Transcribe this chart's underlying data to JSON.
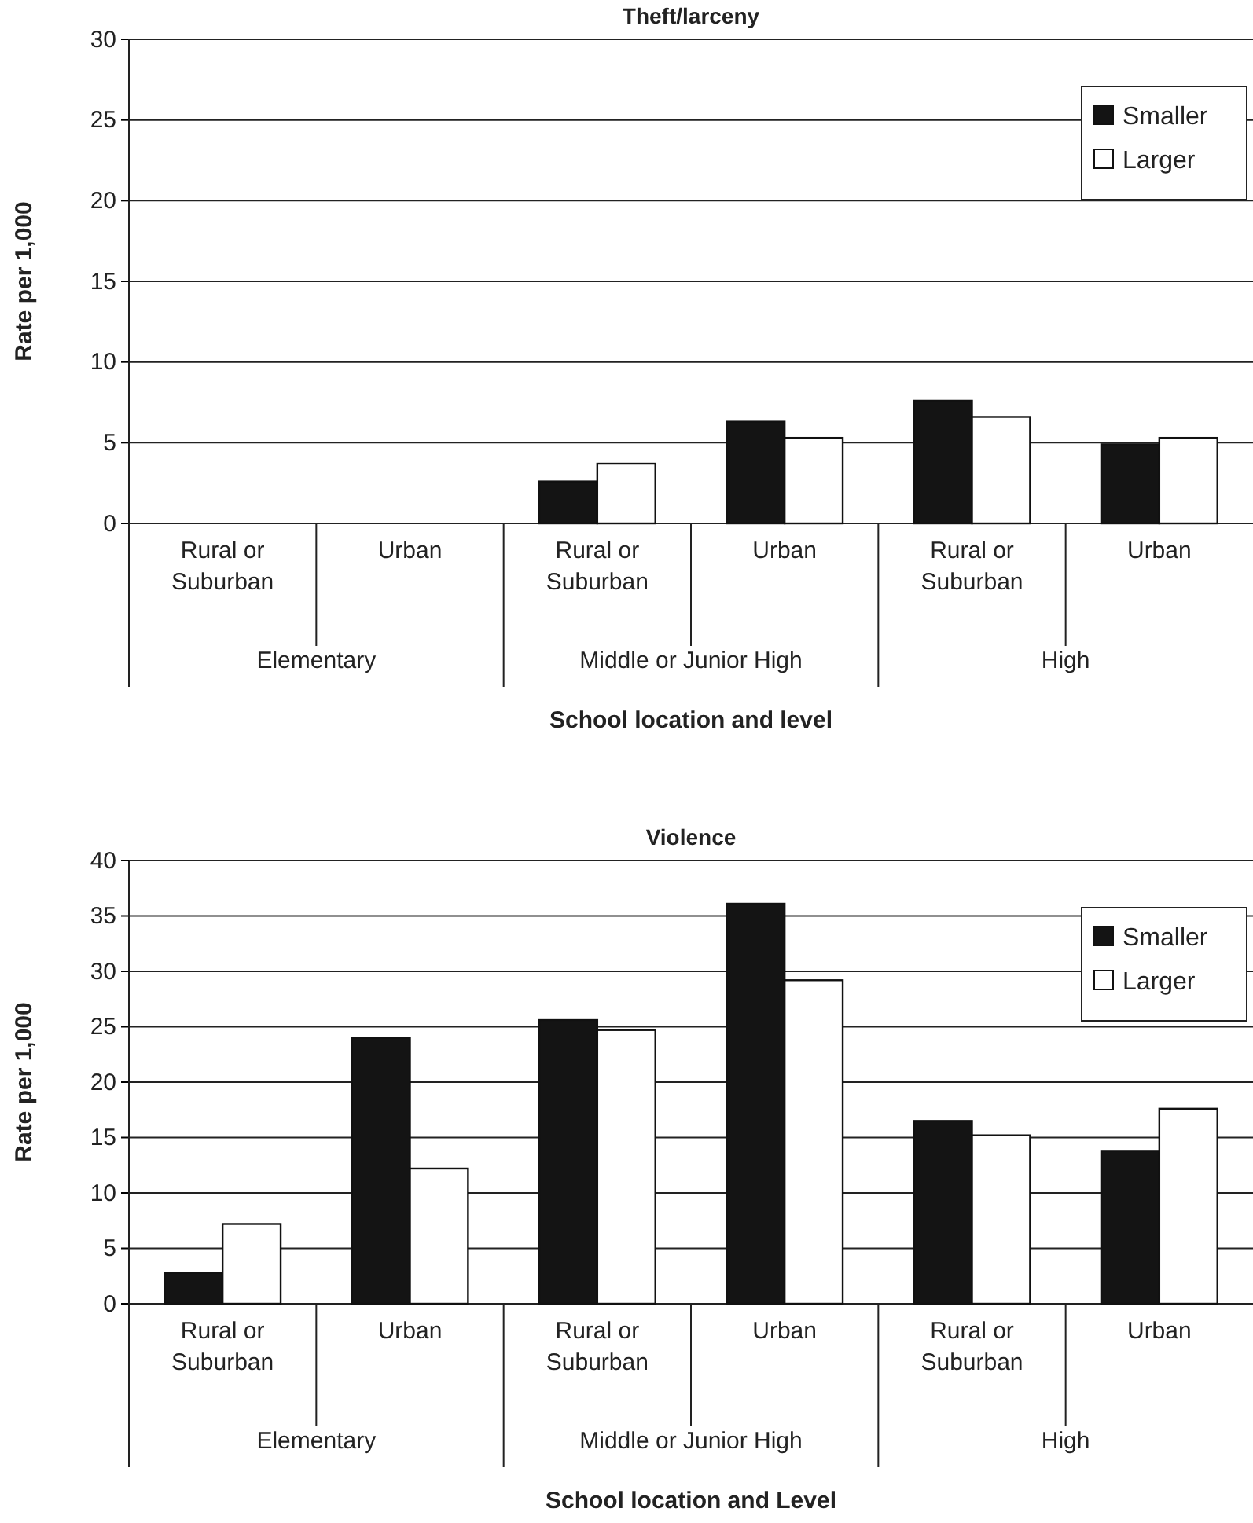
{
  "chart_data": [
    {
      "type": "bar",
      "title": "Theft/larceny",
      "xlabel": "School location and level",
      "ylabel": "Rate per 1,000",
      "categories": [
        "Rural or Suburban",
        "Urban",
        "Rural or Suburban",
        "Urban",
        "Rural or Suburban",
        "Urban"
      ],
      "series": [
        {
          "name": "Smaller",
          "color": "#141414",
          "values": [
            null,
            null,
            2.6,
            6.3,
            7.6,
            4.9
          ]
        },
        {
          "name": "Larger",
          "color": "#ffffff",
          "values": [
            null,
            null,
            3.7,
            5.3,
            6.6,
            5.3
          ]
        }
      ],
      "annotations": [
        "Elementary",
        "Middle or Junior High",
        "High"
      ],
      "ylim": [
        0,
        30
      ],
      "yticks": [
        0,
        5,
        10,
        15,
        20,
        25,
        30
      ],
      "grid": "y",
      "legend": "top right"
    },
    {
      "type": "bar",
      "title": "Violence",
      "xlabel": "School location and Level",
      "ylabel": "Rate per 1,000",
      "categories": [
        "Rural or Suburban",
        "Urban",
        "Rural or Suburban",
        "Urban",
        "Rural or Suburban",
        "Urban"
      ],
      "series": [
        {
          "name": "Smaller",
          "color": "#141414",
          "values": [
            2.8,
            24.0,
            25.6,
            36.1,
            16.5,
            13.8
          ]
        },
        {
          "name": "Larger",
          "color": "#ffffff",
          "values": [
            7.2,
            12.2,
            24.7,
            29.2,
            15.2,
            17.6
          ]
        }
      ],
      "annotations": [
        "Elementary",
        "Middle or Junior High",
        "High"
      ],
      "ylim": [
        0,
        40
      ],
      "yticks": [
        0,
        5,
        10,
        15,
        20,
        25,
        30,
        35,
        40
      ],
      "grid": "y",
      "legend": "top right"
    }
  ]
}
